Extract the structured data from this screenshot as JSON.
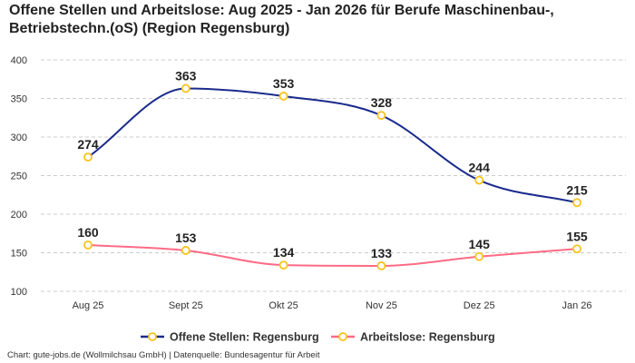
{
  "chart_data": {
    "type": "line",
    "title": "Offene Stellen und Arbeitslose: Aug 2025 - Jan 2026 für Berufe Maschinenbau-, Betriebstechn.(oS) (Region Regensburg)",
    "categories": [
      "Aug 25",
      "Sept 25",
      "Okt 25",
      "Nov 25",
      "Dez 25",
      "Jan 26"
    ],
    "series": [
      {
        "name": "Offene Stellen: Regensburg",
        "values": [
          274,
          363,
          353,
          328,
          244,
          215
        ],
        "color": "#1a2b8c"
      },
      {
        "name": "Arbeitslose: Regensburg",
        "values": [
          160,
          153,
          134,
          133,
          145,
          155
        ],
        "color": "#ff6b86"
      }
    ],
    "marker_color": "#f7c31c",
    "ylim": [
      100,
      400
    ],
    "yticks": [
      100,
      150,
      200,
      250,
      300,
      350,
      400
    ],
    "grid": true,
    "legend_position": "bottom",
    "xlabel": "",
    "ylabel": ""
  },
  "credit": "Chart: gute-jobs.de (Wollmilchsau GmbH) | Datenquelle: Bundesagentur für Arbeit"
}
